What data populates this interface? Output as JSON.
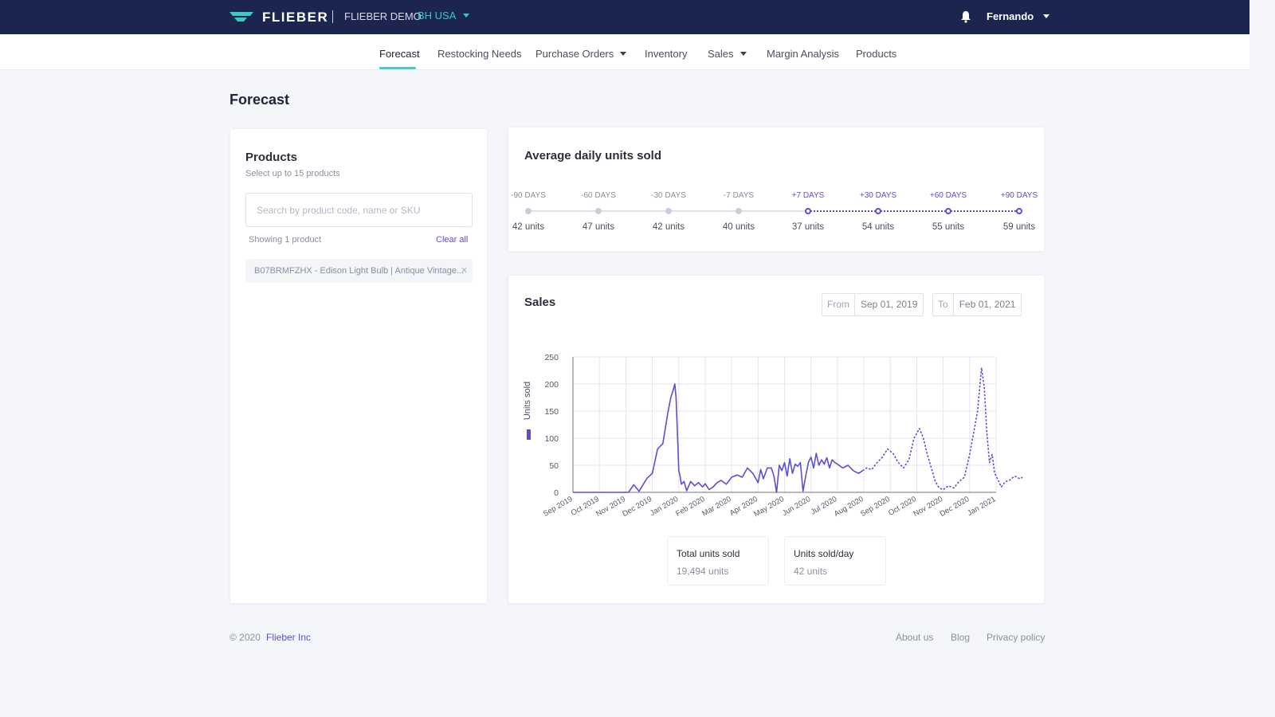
{
  "colors": {
    "topbar": "#1c2550",
    "accent": "#5b4fd1",
    "teal": "#37cbc3",
    "nav_indicator": "#4ec9c8"
  },
  "header": {
    "brand": "FLIEBER",
    "demo_name": "FLIEBER DEMO",
    "region": "BH USA",
    "user": "Fernando",
    "icons": {
      "logo": "flieber-logo-icon",
      "notifications": "bell-icon"
    }
  },
  "nav": {
    "items": [
      {
        "label": "Forecast",
        "active": true
      },
      {
        "label": "Restocking Needs"
      },
      {
        "label": "Purchase Orders",
        "dropdown": true
      },
      {
        "label": "Inventory"
      },
      {
        "label": "Sales",
        "dropdown": true
      },
      {
        "label": "Margin Analysis"
      },
      {
        "label": "Products"
      }
    ]
  },
  "page": {
    "title": "Forecast"
  },
  "products": {
    "title": "Products",
    "subtitle": "Select up to 15 products",
    "search_placeholder": "Search by product code, name or SKU",
    "search_value": "",
    "showing": "Showing 1 product",
    "clear_all": "Clear all",
    "selected": [
      {
        "label": "B07BRMFZHX - Edison Light Bulb | Antique Vintage..."
      }
    ]
  },
  "avg_daily": {
    "title": "Average daily units sold",
    "points": [
      {
        "label": "-90 DAYS",
        "units": "42 units",
        "future": false
      },
      {
        "label": "-60 DAYS",
        "units": "47 units",
        "future": false
      },
      {
        "label": "-30 DAYS",
        "units": "42 units",
        "future": false
      },
      {
        "label": "-7 DAYS",
        "units": "40 units",
        "future": false
      },
      {
        "label": "+7 DAYS",
        "units": "37 units",
        "future": true
      },
      {
        "label": "+30 DAYS",
        "units": "54 units",
        "future": true
      },
      {
        "label": "+60 DAYS",
        "units": "55 units",
        "future": true
      },
      {
        "label": "+90 DAYS",
        "units": "59 units",
        "future": true
      }
    ]
  },
  "sales": {
    "title": "Sales",
    "from_label": "From",
    "from_value": "Sep 01, 2019",
    "to_label": "To",
    "to_value": "Feb 01, 2021",
    "stats": [
      {
        "label": "Total units sold",
        "value": "19,494 units"
      },
      {
        "label": "Units sold/day",
        "value": "42 units"
      }
    ]
  },
  "chart_data": {
    "type": "line",
    "ylabel": "Units sold",
    "ylim": [
      0,
      250
    ],
    "yticks": [
      0,
      50,
      100,
      150,
      200,
      250
    ],
    "x_ticks": [
      "Sep 2019",
      "Oct 2019",
      "Nov 2019",
      "Dec 2019",
      "Jan 2020",
      "Feb 2020",
      "Mar 2020",
      "Apr 2020",
      "May 2020",
      "Jun 2020",
      "Jul 2020",
      "Aug 2020",
      "Sep 2020",
      "Oct 2020",
      "Nov 2020",
      "Dec 2020",
      "Jan 2021"
    ],
    "grid": true,
    "color": "#5b4fd1",
    "series": [
      {
        "style": "solid",
        "x": [
          0,
          0.3,
          0.6,
          0.9,
          1.2,
          1.6,
          1.9,
          2.1,
          2.3,
          2.5,
          2.8,
          3.0,
          3.2,
          3.4,
          3.6,
          3.7,
          3.8,
          3.85,
          3.9,
          3.95,
          4.0,
          4.05,
          4.1,
          4.2,
          4.3,
          4.45,
          4.6,
          4.75,
          4.9,
          5.0,
          5.15,
          5.3,
          5.45,
          5.6,
          5.8,
          6.0,
          6.2,
          6.4,
          6.6,
          6.8,
          7.0,
          7.1,
          7.2,
          7.35,
          7.5,
          7.6,
          7.7,
          7.8,
          7.9,
          8.0,
          8.1,
          8.2,
          8.3,
          8.4,
          8.5,
          8.6,
          8.7,
          8.8,
          8.9,
          9.0,
          9.1,
          9.2,
          9.3,
          9.4,
          9.5,
          9.6,
          9.7,
          9.8,
          9.9,
          10.0,
          10.2,
          10.4,
          10.6,
          10.8,
          10.95
        ],
        "y": [
          0,
          0,
          0,
          0,
          0,
          0,
          0,
          0,
          14,
          2,
          26,
          35,
          80,
          90,
          150,
          175,
          190,
          200,
          175,
          110,
          40,
          30,
          15,
          20,
          3,
          20,
          12,
          18,
          10,
          16,
          5,
          10,
          18,
          22,
          15,
          28,
          32,
          28,
          45,
          35,
          18,
          42,
          25,
          45,
          45,
          30,
          0,
          50,
          40,
          55,
          30,
          62,
          35,
          52,
          48,
          55,
          2,
          30,
          55,
          65,
          45,
          72,
          50,
          60,
          52,
          64,
          45,
          60,
          55,
          52,
          45,
          50,
          40,
          35,
          40
        ]
      },
      {
        "style": "dashed",
        "x": [
          10.95,
          11.1,
          11.3,
          11.5,
          11.7,
          11.9,
          12.1,
          12.3,
          12.5,
          12.7,
          12.9,
          13.1,
          13.25,
          13.4,
          13.55,
          13.7,
          13.85,
          14.0,
          14.2,
          14.4,
          14.6,
          14.8,
          15.0,
          15.15,
          15.3,
          15.45,
          15.55,
          15.65,
          15.75,
          15.85,
          15.95,
          16.05,
          16.2,
          16.35,
          16.5,
          16.7,
          16.9,
          17.0
        ],
        "y": [
          40,
          45,
          42,
          55,
          65,
          80,
          72,
          55,
          45,
          60,
          100,
          118,
          100,
          70,
          45,
          20,
          8,
          5,
          12,
          8,
          20,
          28,
          70,
          110,
          150,
          230,
          195,
          110,
          55,
          70,
          35,
          25,
          10,
          20,
          22,
          30,
          25,
          28
        ]
      }
    ]
  }
}
